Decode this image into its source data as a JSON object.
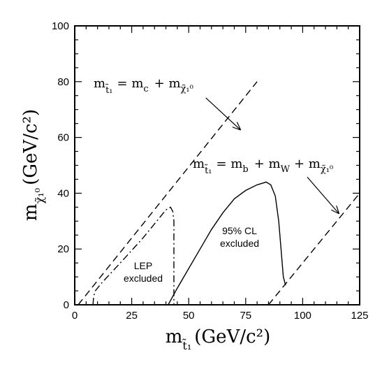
{
  "chart_data": {
    "type": "line",
    "title": "",
    "xlabel": {
      "main": "m",
      "sub": "t̃₁",
      "unit": "(GeV/c²)"
    },
    "ylabel": {
      "main": "m",
      "sub": "χ̃₁⁰",
      "unit": "(GeV/c²)"
    },
    "xlim": [
      0,
      125
    ],
    "ylim": [
      0,
      100
    ],
    "x_ticks": [
      0,
      25,
      50,
      75,
      100,
      125
    ],
    "y_ticks": [
      0,
      20,
      40,
      60,
      80,
      100
    ],
    "x_tick_labels": [
      "0",
      "25",
      "50",
      "75",
      "100",
      "125"
    ],
    "y_tick_labels": [
      "0",
      "20",
      "40",
      "60",
      "80",
      "100"
    ],
    "grid": false,
    "series": [
      {
        "style": "dashed",
        "points": [
          [
            1.5,
            0
          ],
          [
            80,
            80
          ]
        ]
      },
      {
        "style": "dashed",
        "points": [
          [
            85,
            0
          ],
          [
            125,
            40
          ]
        ]
      },
      {
        "style": "dash-dot",
        "points": [
          [
            8,
            0
          ],
          [
            8.3,
            3
          ],
          [
            9,
            5
          ],
          [
            12,
            8
          ],
          [
            20,
            15
          ],
          [
            30,
            24
          ],
          [
            40,
            34
          ],
          [
            42,
            35
          ],
          [
            43,
            33.5
          ],
          [
            43.5,
            30
          ],
          [
            43.5,
            0
          ]
        ]
      },
      {
        "style": "solid",
        "points": [
          [
            41,
            0
          ],
          [
            45,
            6
          ],
          [
            50,
            13
          ],
          [
            55,
            20
          ],
          [
            60,
            27
          ],
          [
            65,
            33
          ],
          [
            70,
            38
          ],
          [
            75,
            41
          ],
          [
            80,
            43
          ],
          [
            84,
            44
          ],
          [
            86,
            43
          ],
          [
            88,
            39
          ],
          [
            89.5,
            30
          ],
          [
            90.5,
            20
          ],
          [
            91.5,
            10
          ],
          [
            92.5,
            7
          ]
        ]
      }
    ],
    "annotations": {
      "eq1": {
        "m1": "m",
        "s1": "t̃₁",
        "eq": "= m",
        "s2": "c",
        "plus": "+ m",
        "s3": "χ̃₁⁰",
        "arrow_from": [
          57.5,
          74.2
        ],
        "arrow_to": [
          72.6,
          62.8
        ]
      },
      "eq2": {
        "m1": "m",
        "s1": "t̃₁",
        "eq": "= m",
        "s2": "b",
        "plus1": "+ m",
        "s3": "W",
        "plus2": "+ m",
        "s4": "χ̃₁⁰",
        "arrow_from": [
          102,
          45.8
        ],
        "arrow_to": [
          115.8,
          32.8
        ]
      },
      "lep": {
        "line1": "LEP",
        "line2": "excluded"
      },
      "cl": {
        "line1": "95% CL",
        "line2": "excluded"
      }
    }
  }
}
